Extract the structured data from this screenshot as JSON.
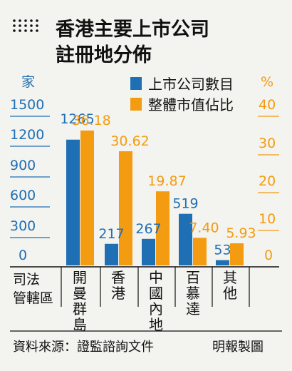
{
  "title": {
    "line1": "香港主要上市公司",
    "line2": "註冊地分佈"
  },
  "axis_label": {
    "line1": "司法",
    "line2": "管轄區"
  },
  "footer": {
    "source": "資料來源：證監諮詢文件",
    "credit": "明報製圖"
  },
  "colors": {
    "companies": "#1f6fb4",
    "market_share": "#f39c12"
  },
  "chart_data": {
    "type": "bar",
    "categories": [
      "開曼群島",
      "香港",
      "中國內地",
      "百慕達",
      "其他"
    ],
    "series": [
      {
        "name": "上市公司數目",
        "axis": "left",
        "values": [
          1265,
          217,
          267,
          519,
          53
        ]
      },
      {
        "name": "整體市值佔比",
        "axis": "right",
        "values": [
          36.18,
          30.62,
          19.87,
          7.4,
          5.93
        ]
      }
    ],
    "value_labels": [
      [
        "1265",
        "217",
        "267",
        "519",
        "53"
      ],
      [
        "36.18",
        "30.62",
        "19.87",
        "7.40",
        "5.93"
      ]
    ],
    "left_axis": {
      "unit": "家",
      "ylim": [
        0,
        1500
      ],
      "ticks": [
        "0",
        "300",
        "600",
        "900",
        "1200",
        "1500"
      ]
    },
    "right_axis": {
      "unit": "%",
      "ylim": [
        0,
        40
      ],
      "ticks": [
        "0",
        "10",
        "20",
        "30",
        "40"
      ]
    },
    "legend": "top-right",
    "grid": false
  }
}
